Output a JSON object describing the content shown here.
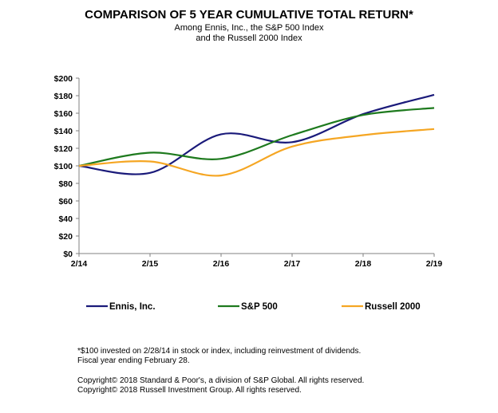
{
  "chart_data": {
    "type": "line",
    "title": "COMPARISON OF 5 YEAR CUMULATIVE TOTAL RETURN*",
    "subtitle": [
      "Among Ennis, Inc., the S&P 500 Index",
      "and the Russell 2000 Index"
    ],
    "categories": [
      "2/14",
      "2/15",
      "2/16",
      "2/17",
      "2/18",
      "2/19"
    ],
    "ylim": [
      0,
      200
    ],
    "yticks": [
      0,
      20,
      40,
      60,
      80,
      100,
      120,
      140,
      160,
      180,
      200
    ],
    "ytick_labels": [
      "$0",
      "$20",
      "$40",
      "$60",
      "$80",
      "$100",
      "$120",
      "$140",
      "$160",
      "$180",
      "$200"
    ],
    "grid": false,
    "legend_position": "bottom",
    "smoothed": true,
    "series": [
      {
        "name": "Ennis, Inc.",
        "color": "#1a1a7a",
        "values": [
          100,
          92,
          136,
          127,
          159,
          181
        ]
      },
      {
        "name": "S&P 500",
        "color": "#1e7a1e",
        "values": [
          100,
          115,
          108,
          135,
          158,
          166
        ]
      },
      {
        "name": "Russell 2000",
        "color": "#f5a623",
        "values": [
          100,
          105,
          89,
          122,
          135,
          142
        ]
      }
    ]
  },
  "footnotes": {
    "line1": "*$100 invested on 2/28/14 in stock or index, including reinvestment of dividends.",
    "line2": "Fiscal year ending February 28.",
    "copyright1": "Copyright© 2018 Standard & Poor's, a division of S&P Global.  All rights reserved.",
    "copyright2": "Copyright© 2018 Russell Investment Group.  All rights reserved."
  }
}
